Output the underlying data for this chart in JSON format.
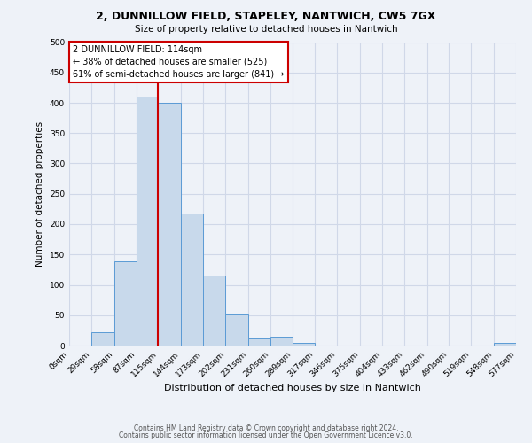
{
  "title": "2, DUNNILLOW FIELD, STAPELEY, NANTWICH, CW5 7GX",
  "subtitle": "Size of property relative to detached houses in Nantwich",
  "xlabel": "Distribution of detached houses by size in Nantwich",
  "ylabel": "Number of detached properties",
  "bar_color": "#c8d9eb",
  "bar_edge_color": "#5b9bd5",
  "grid_color": "#d0d8e8",
  "background_color": "#eef2f8",
  "bin_edges": [
    0,
    29,
    58,
    87,
    115,
    144,
    173,
    202,
    231,
    260,
    289,
    317,
    346,
    375,
    404,
    433,
    462,
    490,
    519,
    548,
    577
  ],
  "bin_labels": [
    "0sqm",
    "29sqm",
    "58sqm",
    "87sqm",
    "115sqm",
    "144sqm",
    "173sqm",
    "202sqm",
    "231sqm",
    "260sqm",
    "289sqm",
    "317sqm",
    "346sqm",
    "375sqm",
    "404sqm",
    "433sqm",
    "462sqm",
    "490sqm",
    "519sqm",
    "548sqm",
    "577sqm"
  ],
  "bar_heights": [
    0,
    22,
    138,
    410,
    400,
    218,
    115,
    52,
    12,
    15,
    5,
    0,
    0,
    0,
    0,
    0,
    0,
    0,
    0,
    5
  ],
  "vline_x": 114,
  "vline_color": "#cc0000",
  "annotation_title": "2 DUNNILLOW FIELD: 114sqm",
  "annotation_line1": "← 38% of detached houses are smaller (525)",
  "annotation_line2": "61% of semi-detached houses are larger (841) →",
  "annotation_box_color": "#ffffff",
  "annotation_box_edge": "#cc0000",
  "ylim": [
    0,
    500
  ],
  "yticks": [
    0,
    50,
    100,
    150,
    200,
    250,
    300,
    350,
    400,
    450,
    500
  ],
  "footer1": "Contains HM Land Registry data © Crown copyright and database right 2024.",
  "footer2": "Contains public sector information licensed under the Open Government Licence v3.0."
}
